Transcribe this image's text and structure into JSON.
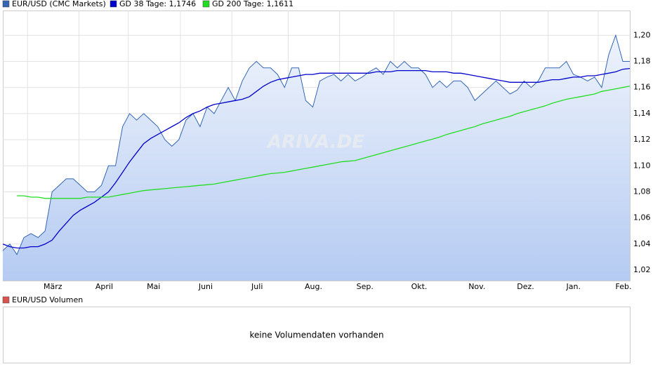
{
  "chart_data": {
    "type": "line",
    "legend": [
      "EUR/USD (CMC Markets)",
      "GD 38 Tage: 1,1746",
      "GD 200 Tage: 1,1611"
    ],
    "watermark": "ARIVA.DE",
    "xlim": [
      0,
      89
    ],
    "xticks": [
      {
        "value": 7.1,
        "label": "März"
      },
      {
        "value": 14.4,
        "label": "April"
      },
      {
        "value": 21.4,
        "label": "Mai"
      },
      {
        "value": 28.8,
        "label": "Juni"
      },
      {
        "value": 36.1,
        "label": "Juli"
      },
      {
        "value": 44.1,
        "label": "Aug."
      },
      {
        "value": 51.4,
        "label": "Sep."
      },
      {
        "value": 59.1,
        "label": "Okt."
      },
      {
        "value": 67.3,
        "label": "Nov."
      },
      {
        "value": 74.2,
        "label": "Dez."
      },
      {
        "value": 81,
        "label": "Jan."
      },
      {
        "value": 88.1,
        "label": "Feb."
      }
    ],
    "ylim": [
      1.012,
      1.219
    ],
    "yticks": [
      {
        "value": 1.02,
        "label": "1,02"
      },
      {
        "value": 1.04,
        "label": "1,04"
      },
      {
        "value": 1.06,
        "label": "1,06"
      },
      {
        "value": 1.08,
        "label": "1,08"
      },
      {
        "value": 1.1,
        "label": "1,10"
      },
      {
        "value": 1.12,
        "label": "1,12"
      },
      {
        "value": 1.14,
        "label": "1,14"
      },
      {
        "value": 1.16,
        "label": "1,16"
      },
      {
        "value": 1.18,
        "label": "1,18"
      },
      {
        "value": 1.2,
        "label": "1,20"
      }
    ],
    "grid": true,
    "series": [
      {
        "name": "EUR/USD (CMC Markets)",
        "color": "#3366b3",
        "fill": true,
        "values": [
          1.035,
          1.04,
          1.032,
          1.045,
          1.048,
          1.045,
          1.05,
          1.08,
          1.085,
          1.09,
          1.09,
          1.085,
          1.08,
          1.08,
          1.085,
          1.1,
          1.1,
          1.13,
          1.14,
          1.135,
          1.14,
          1.135,
          1.13,
          1.12,
          1.115,
          1.12,
          1.135,
          1.14,
          1.13,
          1.145,
          1.14,
          1.15,
          1.16,
          1.15,
          1.165,
          1.175,
          1.18,
          1.175,
          1.175,
          1.17,
          1.16,
          1.175,
          1.175,
          1.15,
          1.145,
          1.165,
          1.168,
          1.17,
          1.165,
          1.17,
          1.165,
          1.168,
          1.172,
          1.175,
          1.17,
          1.18,
          1.175,
          1.18,
          1.175,
          1.175,
          1.17,
          1.16,
          1.165,
          1.16,
          1.165,
          1.165,
          1.16,
          1.15,
          1.155,
          1.16,
          1.165,
          1.16,
          1.155,
          1.158,
          1.165,
          1.16,
          1.165,
          1.175,
          1.175,
          1.175,
          1.18,
          1.17,
          1.168,
          1.165,
          1.168,
          1.16,
          1.185,
          1.2,
          1.18,
          1.18
        ]
      },
      {
        "name": "GD 38 Tage",
        "color": "#0000cc",
        "values": [
          1.04,
          1.038,
          1.037,
          1.037,
          1.038,
          1.038,
          1.04,
          1.043,
          1.05,
          1.056,
          1.062,
          1.066,
          1.069,
          1.072,
          1.076,
          1.08,
          1.087,
          1.095,
          1.103,
          1.11,
          1.117,
          1.121,
          1.124,
          1.127,
          1.13,
          1.133,
          1.137,
          1.14,
          1.142,
          1.145,
          1.147,
          1.148,
          1.149,
          1.15,
          1.151,
          1.153,
          1.157,
          1.161,
          1.164,
          1.166,
          1.167,
          1.168,
          1.169,
          1.17,
          1.17,
          1.171,
          1.171,
          1.171,
          1.171,
          1.171,
          1.171,
          1.171,
          1.171,
          1.172,
          1.172,
          1.172,
          1.173,
          1.173,
          1.173,
          1.173,
          1.173,
          1.172,
          1.172,
          1.172,
          1.171,
          1.171,
          1.17,
          1.169,
          1.168,
          1.167,
          1.166,
          1.165,
          1.164,
          1.164,
          1.164,
          1.164,
          1.164,
          1.165,
          1.166,
          1.166,
          1.167,
          1.168,
          1.168,
          1.169,
          1.169,
          1.17,
          1.171,
          1.172,
          1.174,
          1.1746
        ]
      },
      {
        "name": "GD 200 Tage",
        "color": "#22dd22",
        "values": [
          null,
          null,
          1.077,
          1.077,
          1.076,
          1.076,
          1.075,
          1.075,
          1.075,
          1.075,
          1.075,
          1.075,
          1.076,
          1.076,
          1.076,
          1.076,
          1.077,
          1.078,
          1.079,
          1.08,
          1.081,
          1.0815,
          1.082,
          1.0825,
          1.083,
          1.0835,
          1.084,
          1.0845,
          1.085,
          1.0855,
          1.086,
          1.087,
          1.088,
          1.089,
          1.09,
          1.091,
          1.092,
          1.093,
          1.094,
          1.0945,
          1.095,
          1.096,
          1.097,
          1.098,
          1.099,
          1.1,
          1.101,
          1.102,
          1.103,
          1.1035,
          1.104,
          1.1055,
          1.107,
          1.1085,
          1.11,
          1.1115,
          1.113,
          1.1145,
          1.116,
          1.1175,
          1.119,
          1.1205,
          1.122,
          1.124,
          1.1255,
          1.127,
          1.1285,
          1.13,
          1.132,
          1.1335,
          1.135,
          1.1365,
          1.138,
          1.14,
          1.1415,
          1.143,
          1.1445,
          1.146,
          1.148,
          1.1495,
          1.151,
          1.152,
          1.153,
          1.154,
          1.155,
          1.157,
          1.158,
          1.159,
          1.16,
          1.1611
        ]
      }
    ],
    "volume_legend": "EUR/USD Volumen",
    "volume_message": "keine Volumendaten vorhanden"
  }
}
